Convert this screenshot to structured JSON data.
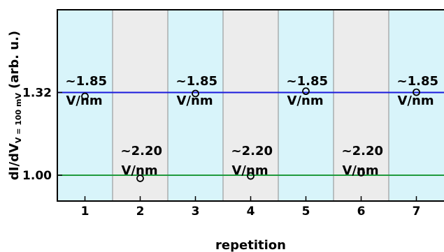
{
  "chart_data": {
    "type": "scatter",
    "xlabel": "repetition",
    "ylabel": {
      "main": "dI/dV",
      "subscript": "V = 100 mV",
      "unit": "(arb. u.)"
    },
    "xlim": [
      0.5,
      7.5
    ],
    "ylim": [
      0.9,
      1.64
    ],
    "x_ticks": [
      "1",
      "2",
      "3",
      "4",
      "5",
      "6",
      "7"
    ],
    "y_ticks": [
      {
        "value": 1.0,
        "label": "1.00"
      },
      {
        "value": 1.32,
        "label": "1.32"
      }
    ],
    "reference_lines": [
      {
        "value": 1.32,
        "color": "#1a1adc"
      },
      {
        "value": 1.0,
        "color": "#1f9a3c"
      }
    ],
    "bands": [
      {
        "from": 0.5,
        "to": 1.5,
        "color": "#d8f4fa"
      },
      {
        "from": 1.5,
        "to": 2.5,
        "color": "#ececec"
      },
      {
        "from": 2.5,
        "to": 3.5,
        "color": "#d8f4fa"
      },
      {
        "from": 3.5,
        "to": 4.5,
        "color": "#ececec"
      },
      {
        "from": 4.5,
        "to": 5.5,
        "color": "#d8f4fa"
      },
      {
        "from": 5.5,
        "to": 6.5,
        "color": "#ececec"
      },
      {
        "from": 6.5,
        "to": 7.5,
        "color": "#d8f4fa"
      }
    ],
    "band_labels": [
      {
        "x": 1,
        "value": "~1.85",
        "unit": "V/nm",
        "position": "upper"
      },
      {
        "x": 2,
        "value": "~2.20",
        "unit": "V/nm",
        "position": "lower"
      },
      {
        "x": 3,
        "value": "~1.85",
        "unit": "V/nm",
        "position": "upper"
      },
      {
        "x": 4,
        "value": "~2.20",
        "unit": "V/nm",
        "position": "lower"
      },
      {
        "x": 5,
        "value": "~1.85",
        "unit": "V/nm",
        "position": "upper"
      },
      {
        "x": 6,
        "value": "~2.20",
        "unit": "V/nm",
        "position": "lower"
      },
      {
        "x": 7,
        "value": "~1.85",
        "unit": "V/nm",
        "position": "upper"
      }
    ],
    "points": [
      {
        "x": 1,
        "y": 1.305
      },
      {
        "x": 2,
        "y": 0.988
      },
      {
        "x": 3,
        "y": 1.316
      },
      {
        "x": 4,
        "y": 0.997
      },
      {
        "x": 5,
        "y": 1.325
      },
      {
        "x": 6,
        "y": 1.01
      },
      {
        "x": 7,
        "y": 1.321
      }
    ],
    "grid": false,
    "marker": "open-circle"
  }
}
